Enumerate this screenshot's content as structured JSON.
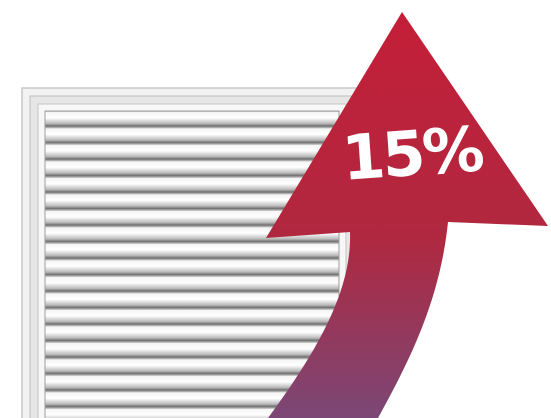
{
  "badge": {
    "text": "15%"
  }
}
